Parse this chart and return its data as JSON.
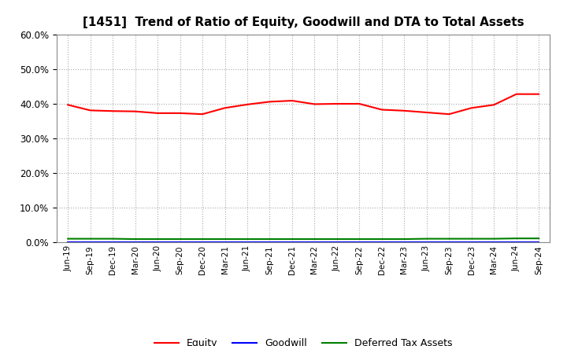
{
  "title": "[1451]  Trend of Ratio of Equity, Goodwill and DTA to Total Assets",
  "x_labels": [
    "Jun-19",
    "Sep-19",
    "Dec-19",
    "Mar-20",
    "Jun-20",
    "Sep-20",
    "Dec-20",
    "Mar-21",
    "Jun-21",
    "Sep-21",
    "Dec-21",
    "Mar-22",
    "Jun-22",
    "Sep-22",
    "Dec-22",
    "Mar-23",
    "Jun-23",
    "Sep-23",
    "Dec-23",
    "Mar-24",
    "Jun-24",
    "Sep-24"
  ],
  "equity": [
    0.397,
    0.381,
    0.379,
    0.378,
    0.373,
    0.373,
    0.37,
    0.388,
    0.398,
    0.406,
    0.409,
    0.399,
    0.4,
    0.4,
    0.383,
    0.38,
    0.375,
    0.37,
    0.388,
    0.397,
    0.428,
    0.428
  ],
  "goodwill": [
    0.001,
    0.001,
    0.001,
    0.001,
    0.001,
    0.001,
    0.001,
    0.001,
    0.001,
    0.001,
    0.001,
    0.001,
    0.001,
    0.001,
    0.001,
    0.001,
    0.001,
    0.001,
    0.001,
    0.001,
    0.001,
    0.001
  ],
  "dta": [
    0.01,
    0.01,
    0.01,
    0.009,
    0.009,
    0.009,
    0.009,
    0.009,
    0.009,
    0.009,
    0.009,
    0.009,
    0.009,
    0.009,
    0.009,
    0.009,
    0.01,
    0.01,
    0.01,
    0.01,
    0.011,
    0.011
  ],
  "equity_color": "#FF0000",
  "goodwill_color": "#0000FF",
  "dta_color": "#008000",
  "ylim": [
    0.0,
    0.6
  ],
  "yticks": [
    0.0,
    0.1,
    0.2,
    0.3,
    0.4,
    0.5,
    0.6
  ],
  "background_color": "#FFFFFF",
  "grid_color": "#AAAAAA",
  "title_fontsize": 11
}
